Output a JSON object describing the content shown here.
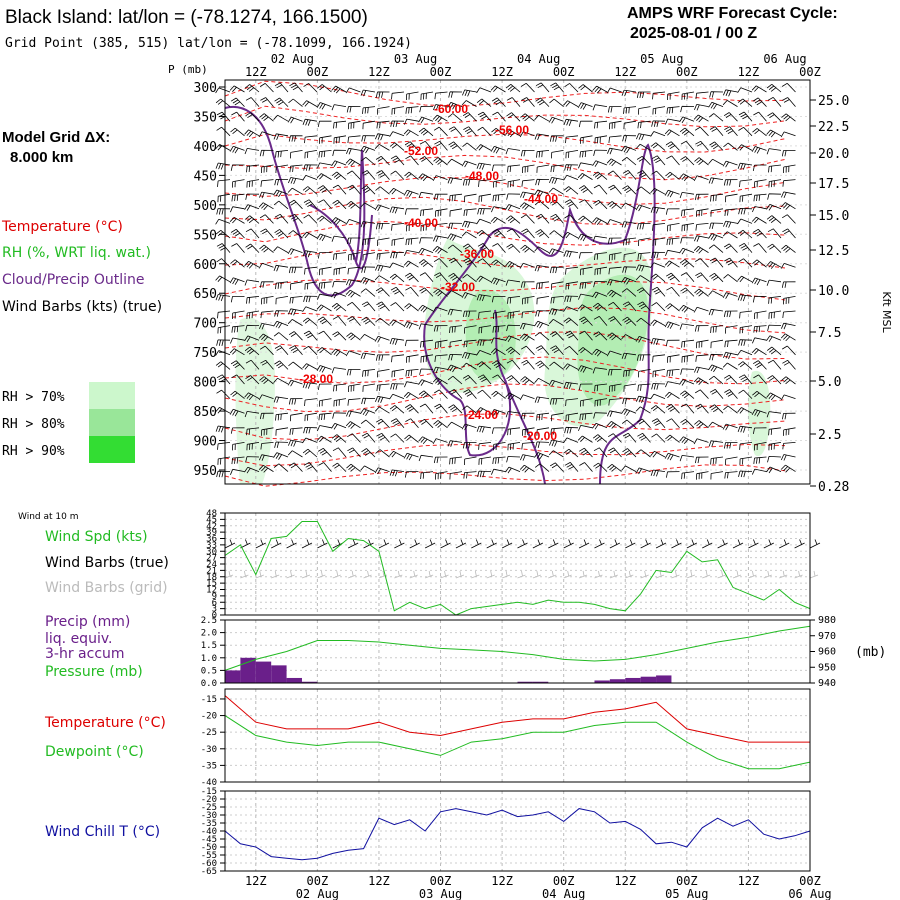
{
  "header": {
    "title": "Black Island:  lat/lon = (-78.1274, 166.1500)",
    "subtitle": "Grid Point (385, 515) lat/lon = (-78.1099, 166.1924)",
    "cycle_line1": "AMPS WRF Forecast Cycle:",
    "cycle_line2": "2025-08-01 / 00  Z"
  },
  "model": {
    "label": "Model Grid ΔX:",
    "value": "8.000 km"
  },
  "legend": {
    "temperature": "Temperature (°C)",
    "rh": "RH (%, WRT liq. wat.)",
    "cloud": "Cloud/Precip Outline",
    "barbs": "Wind Barbs (kts) (true)",
    "rh_levels": [
      {
        "label": "RH > 70%",
        "color": "#ccf7cc"
      },
      {
        "label": "RH > 80%",
        "color": "#99e699"
      },
      {
        "label": "RH > 90%",
        "color": "#33dd33"
      }
    ]
  },
  "colors": {
    "temperature": "#dd0000",
    "dewpoint": "#22bb22",
    "cloud": "#6a2a8a",
    "precip": "#6a1f8a",
    "pressure": "#22bb22",
    "windchill": "#1010a0",
    "wind_spd": "#22bb22"
  },
  "time_axis": {
    "hour_labels": [
      "12Z",
      "00Z",
      "12Z",
      "00Z",
      "12Z",
      "00Z",
      "12Z",
      "00Z",
      "12Z",
      "00Z"
    ],
    "date_labels": [
      "02 Aug",
      "03 Aug",
      "04 Aug",
      "05 Aug",
      "06 Aug"
    ]
  },
  "chart_data": [
    {
      "type": "heatmap",
      "name": "vertical cross-section",
      "ylabel": "P (mb)",
      "y2label": "Kft MSL",
      "pressure_ticks": [
        300,
        350,
        400,
        450,
        500,
        550,
        600,
        650,
        700,
        750,
        800,
        850,
        900,
        950
      ],
      "height_ticks": [
        "25.0",
        "22.5",
        "20.0",
        "17.5",
        "15.0",
        "12.5",
        "10.0",
        "7.5",
        "5.0",
        "2.5",
        "0.28"
      ],
      "temperature_contour_labels": [
        "-60.00",
        "-56.00",
        "-52.00",
        "-48.00",
        "-44.00",
        "-40.00",
        "-36.00",
        "-32.00",
        "-28.00",
        "-24.00",
        "-20.00"
      ]
    },
    {
      "type": "line",
      "title": "Wind at 10 m",
      "series_labels": [
        "Wind Spd (kts)",
        "Wind Barbs (true)",
        "Wind Barbs (grid)"
      ],
      "yticks": [
        0,
        3,
        6,
        9,
        12,
        15,
        18,
        21,
        24,
        27,
        30,
        33,
        36,
        39,
        42,
        45,
        48
      ],
      "ylim": [
        0,
        48
      ],
      "x_hours": [
        6,
        9,
        12,
        15,
        18,
        21,
        24,
        27,
        30,
        33,
        36,
        39,
        42,
        45,
        48,
        51,
        54,
        57,
        60,
        63,
        66,
        69,
        72,
        75,
        78,
        81,
        84,
        87,
        90,
        93,
        96,
        99,
        102,
        105,
        108,
        111,
        114,
        117,
        120
      ],
      "values": [
        28,
        33,
        19,
        36,
        37,
        44,
        44,
        30,
        36,
        35,
        30,
        2,
        6,
        3,
        5,
        0,
        3,
        4,
        5,
        6,
        5,
        7,
        6,
        6,
        5,
        3,
        2,
        10,
        21,
        20,
        30,
        25,
        26,
        13,
        10,
        7,
        12,
        6,
        3
      ]
    },
    {
      "type": "bar",
      "series_labels": [
        "Precip (mm)",
        "liq. equiv.",
        "3-hr accum",
        "Pressure (mb)"
      ],
      "yticks": [
        "0.0",
        "0.5",
        "1.0",
        "1.5",
        "2.0",
        "2.5"
      ],
      "ylim": [
        0,
        2.5
      ],
      "y2ticks": [
        "940",
        "950",
        "960",
        "970",
        "980"
      ],
      "y2lim": [
        940,
        980
      ],
      "y2label": "(mb)",
      "x_hours": [
        9,
        12,
        15,
        18,
        21,
        24,
        27,
        30,
        33,
        36,
        39,
        42,
        45,
        48,
        51,
        54,
        57,
        60,
        63,
        66,
        69,
        72,
        75,
        78,
        81,
        84,
        87,
        90,
        93,
        96,
        99,
        102,
        105,
        108,
        111,
        114,
        117,
        120
      ],
      "precip": [
        0.5,
        1.0,
        0.85,
        0.7,
        0.2,
        0.05,
        0,
        0,
        0,
        0,
        0,
        0,
        0,
        0,
        0,
        0,
        0,
        0,
        0,
        0.05,
        0.05,
        0,
        0,
        0,
        0.1,
        0.15,
        0.2,
        0.25,
        0.3,
        0,
        0,
        0,
        0,
        0,
        0,
        0,
        0,
        0
      ],
      "pressure_x_hours": [
        6,
        12,
        18,
        24,
        30,
        36,
        42,
        48,
        54,
        60,
        66,
        72,
        78,
        84,
        90,
        96,
        102,
        108,
        114,
        120
      ],
      "pressure": [
        948,
        955,
        960,
        967,
        967,
        966,
        964,
        962,
        961,
        960,
        958,
        955,
        954,
        955,
        958,
        962,
        966,
        969,
        973,
        976
      ]
    },
    {
      "type": "line",
      "series_labels": [
        "Temperature (°C)",
        "Dewpoint (°C)"
      ],
      "yticks": [
        -15,
        -20,
        -25,
        -30,
        -35,
        -40
      ],
      "ylim": [
        -40,
        -12
      ],
      "x_hours": [
        6,
        12,
        18,
        24,
        30,
        36,
        42,
        48,
        54,
        60,
        66,
        72,
        78,
        84,
        90,
        96,
        102,
        108,
        114,
        120
      ],
      "temperature": [
        -14,
        -22,
        -24,
        -24,
        -24,
        -22,
        -25,
        -26,
        -24,
        -22,
        -21,
        -21,
        -19,
        -18,
        -16,
        -24,
        -26,
        -28,
        -28,
        -28
      ],
      "dewpoint": [
        -20,
        -26,
        -28,
        -29,
        -28,
        -28,
        -30,
        -32,
        -28,
        -27,
        -25,
        -25,
        -23,
        -22,
        -22,
        -28,
        -33,
        -36,
        -36,
        -34
      ]
    },
    {
      "type": "line",
      "series_labels": [
        "Wind Chill T (°C)"
      ],
      "yticks": [
        -15,
        -20,
        -25,
        -30,
        -35,
        -40,
        -45,
        -50,
        -55,
        -60,
        -65
      ],
      "ylim": [
        -65,
        -15
      ],
      "x_hours": [
        6,
        9,
        12,
        15,
        18,
        21,
        24,
        27,
        30,
        33,
        36,
        39,
        42,
        45,
        48,
        51,
        54,
        57,
        60,
        63,
        66,
        69,
        72,
        75,
        78,
        81,
        84,
        87,
        90,
        93,
        96,
        99,
        102,
        105,
        108,
        111,
        114,
        117,
        120
      ],
      "values": [
        -40,
        -48,
        -50,
        -56,
        -57,
        -58,
        -57,
        -54,
        -52,
        -51,
        -32,
        -36,
        -33,
        -40,
        -28,
        -26,
        -28,
        -30,
        -27,
        -31,
        -30,
        -28,
        -34,
        -26,
        -28,
        -35,
        -34,
        -39,
        -48,
        -47,
        -50,
        -38,
        -32,
        -37,
        -33,
        -42,
        -45,
        -43,
        -40
      ]
    }
  ]
}
